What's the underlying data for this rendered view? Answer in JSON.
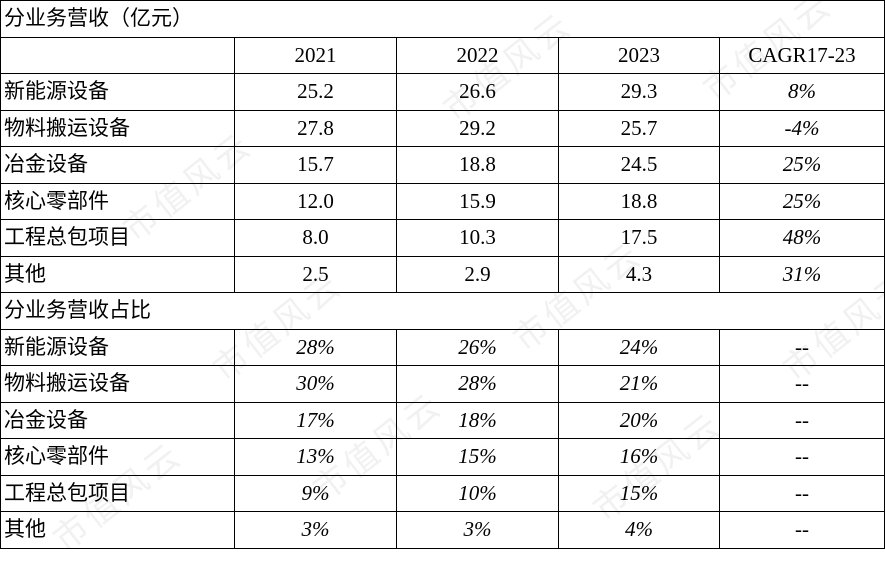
{
  "section1": {
    "title": "分业务营收（亿元）",
    "headers": [
      "2021",
      "2022",
      "2023",
      "CAGR17-23"
    ],
    "rows": [
      {
        "label": "新能源设备",
        "values": [
          "25.2",
          "26.6",
          "29.3"
        ],
        "cagr": "8%"
      },
      {
        "label": "物料搬运设备",
        "values": [
          "27.8",
          "29.2",
          "25.7"
        ],
        "cagr": "-4%"
      },
      {
        "label": "冶金设备",
        "values": [
          "15.7",
          "18.8",
          "24.5"
        ],
        "cagr": "25%"
      },
      {
        "label": "核心零部件",
        "values": [
          "12.0",
          "15.9",
          "18.8"
        ],
        "cagr": "25%"
      },
      {
        "label": "工程总包项目",
        "values": [
          "8.0",
          "10.3",
          "17.5"
        ],
        "cagr": "48%"
      },
      {
        "label": "其他",
        "values": [
          "2.5",
          "2.9",
          "4.3"
        ],
        "cagr": "31%"
      }
    ]
  },
  "section2": {
    "title": "分业务营收占比",
    "rows": [
      {
        "label": "新能源设备",
        "values": [
          "28%",
          "26%",
          "24%"
        ],
        "cagr": "--"
      },
      {
        "label": "物料搬运设备",
        "values": [
          "30%",
          "28%",
          "21%"
        ],
        "cagr": "--"
      },
      {
        "label": "冶金设备",
        "values": [
          "17%",
          "18%",
          "20%"
        ],
        "cagr": "--"
      },
      {
        "label": "核心零部件",
        "values": [
          "13%",
          "15%",
          "16%"
        ],
        "cagr": "--"
      },
      {
        "label": "工程总包项目",
        "values": [
          "9%",
          "10%",
          "15%"
        ],
        "cagr": "--"
      },
      {
        "label": "其他",
        "values": [
          "3%",
          "3%",
          "4%"
        ],
        "cagr": "--"
      }
    ]
  },
  "watermark": "市值风云"
}
